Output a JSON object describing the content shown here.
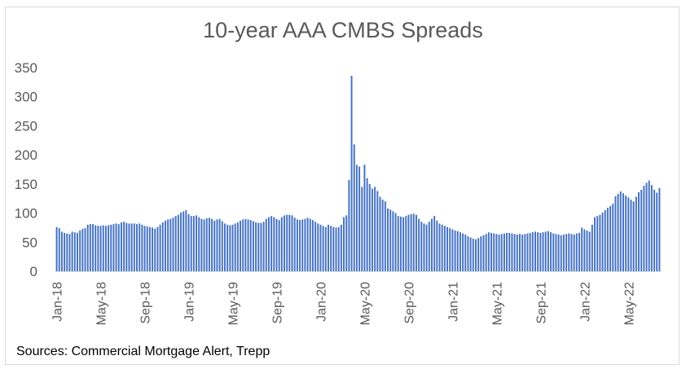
{
  "chart_data": {
    "type": "bar",
    "title": "10-year AAA CMBS Spreads",
    "source": "Sources: Commercial Mortgage Alert, Trepp",
    "ylim": [
      0,
      350
    ],
    "yticks": [
      0,
      50,
      100,
      150,
      200,
      250,
      300,
      350
    ],
    "xtick_labels": [
      "Jan-18",
      "May-18",
      "Sep-18",
      "Jan-19",
      "May-19",
      "Sep-19",
      "Jan-20",
      "May-20",
      "Sep-20",
      "Jan-21",
      "May-21",
      "Sep-21",
      "Jan-22",
      "May-22"
    ],
    "grid": false,
    "bar_color": "#4472c4",
    "values": [
      76,
      74,
      68,
      66,
      65,
      64,
      68,
      67,
      66,
      70,
      73,
      74,
      80,
      81,
      81,
      79,
      78,
      78,
      79,
      78,
      79,
      80,
      81,
      82,
      81,
      84,
      85,
      83,
      82,
      82,
      82,
      81,
      82,
      80,
      78,
      77,
      76,
      75,
      73,
      76,
      80,
      84,
      87,
      89,
      90,
      92,
      95,
      97,
      101,
      103,
      105,
      98,
      95,
      95,
      96,
      93,
      90,
      89,
      91,
      92,
      90,
      87,
      89,
      90,
      86,
      82,
      80,
      79,
      80,
      82,
      84,
      87,
      89,
      90,
      89,
      88,
      86,
      84,
      83,
      83,
      85,
      90,
      93,
      95,
      93,
      90,
      88,
      93,
      96,
      97,
      97,
      96,
      92,
      89,
      88,
      89,
      90,
      92,
      90,
      88,
      85,
      82,
      80,
      78,
      76,
      80,
      78,
      76,
      75,
      76,
      80,
      93,
      96,
      157,
      336,
      218,
      183,
      180,
      145,
      183,
      160,
      150,
      142,
      145,
      138,
      128,
      123,
      120,
      108,
      106,
      103,
      100,
      95,
      94,
      93,
      95,
      97,
      98,
      99,
      97,
      90,
      85,
      82,
      80,
      85,
      90,
      95,
      87,
      82,
      80,
      78,
      76,
      74,
      72,
      70,
      69,
      67,
      65,
      63,
      60,
      58,
      56,
      55,
      57,
      60,
      62,
      64,
      67,
      66,
      65,
      64,
      63,
      64,
      65,
      66,
      66,
      65,
      64,
      63,
      64,
      63,
      64,
      65,
      66,
      67,
      68,
      67,
      66,
      67,
      68,
      69,
      67,
      65,
      64,
      63,
      62,
      63,
      64,
      65,
      64,
      63,
      65,
      66,
      75,
      72,
      70,
      68,
      80,
      93,
      95,
      97,
      101,
      105,
      109,
      112,
      116,
      129,
      133,
      137,
      134,
      130,
      127,
      123,
      120,
      128,
      136,
      140,
      147,
      152,
      156,
      148,
      140,
      135,
      143
    ]
  }
}
